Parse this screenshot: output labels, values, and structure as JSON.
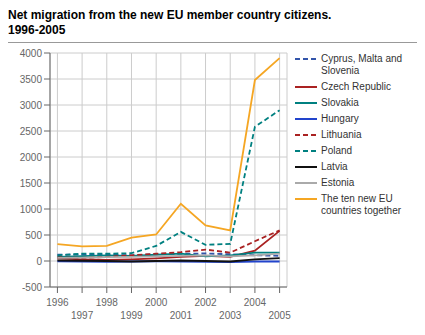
{
  "chart_data": {
    "type": "line",
    "title": "Net migration from the new EU member country citizens.\n1996-2005",
    "x": [
      1996,
      1997,
      1998,
      1999,
      2000,
      2001,
      2002,
      2003,
      2004,
      2005
    ],
    "series": [
      {
        "name": "Cyprus, Malta and\nSlovenia",
        "color": "#3355aa",
        "line_style": "dashed",
        "values": [
          120,
          125,
          120,
          110,
          130,
          140,
          145,
          130,
          110,
          100
        ]
      },
      {
        "name": "Czech Republic",
        "color": "#aa2222",
        "line_style": "solid",
        "values": [
          50,
          30,
          20,
          30,
          50,
          80,
          100,
          80,
          200,
          580
        ]
      },
      {
        "name": "Slovakia",
        "color": "#008080",
        "line_style": "solid",
        "values": [
          80,
          95,
          110,
          100,
          120,
          140,
          90,
          110,
          160,
          160
        ]
      },
      {
        "name": "Hungary",
        "color": "#2244cc",
        "line_style": "solid",
        "values": [
          -5,
          -10,
          -15,
          -10,
          -5,
          -10,
          -15,
          -20,
          -10,
          -10
        ]
      },
      {
        "name": "Lithuania",
        "color": "#aa2222",
        "line_style": "dashed",
        "values": [
          70,
          60,
          80,
          110,
          140,
          170,
          220,
          160,
          380,
          590
        ]
      },
      {
        "name": "Poland",
        "color": "#008080",
        "line_style": "dashed",
        "values": [
          110,
          140,
          140,
          150,
          290,
          560,
          310,
          330,
          2580,
          2900
        ]
      },
      {
        "name": "Latvia",
        "color": "#111111",
        "line_style": "solid",
        "values": [
          10,
          5,
          0,
          -10,
          0,
          10,
          0,
          -10,
          30,
          55
        ]
      },
      {
        "name": "Estonia",
        "color": "#aaaaaa",
        "line_style": "solid",
        "values": [
          60,
          65,
          75,
          80,
          90,
          100,
          110,
          90,
          110,
          140
        ]
      },
      {
        "name": "The ten new EU\ncountries together",
        "color": "#f5a623",
        "line_style": "solid",
        "values": [
          325,
          280,
          290,
          450,
          510,
          1100,
          685,
          590,
          3480,
          3900
        ]
      }
    ],
    "xlim": [
      1995.7,
      2005.3
    ],
    "xticks": [
      1996,
      1997,
      1998,
      1999,
      2000,
      2001,
      2002,
      2003,
      2004,
      2005
    ],
    "ylim": [
      -500,
      4000
    ],
    "yticks": [
      -500,
      0,
      500,
      1000,
      1500,
      2000,
      2500,
      3000,
      3500,
      4000
    ],
    "grid": true,
    "legend": "right"
  }
}
